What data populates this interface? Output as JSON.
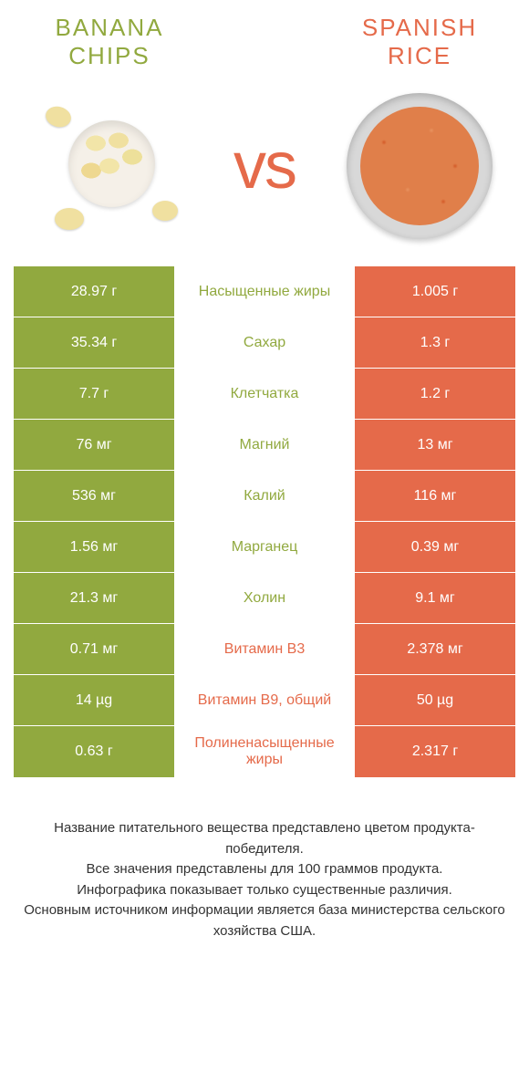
{
  "colors": {
    "left_accent": "#91a93f",
    "right_accent": "#e56a4a",
    "text": "#333333",
    "background": "#ffffff"
  },
  "product_left": {
    "title": "Banana chips"
  },
  "product_right": {
    "title": "Spanish rice"
  },
  "vs_label": "vs",
  "nutrients": [
    {
      "label": "Насыщенные жиры",
      "left_value": "28.97 г",
      "right_value": "1.005 г",
      "winner": "left"
    },
    {
      "label": "Сахар",
      "left_value": "35.34 г",
      "right_value": "1.3 г",
      "winner": "left"
    },
    {
      "label": "Клетчатка",
      "left_value": "7.7 г",
      "right_value": "1.2 г",
      "winner": "left"
    },
    {
      "label": "Магний",
      "left_value": "76 мг",
      "right_value": "13 мг",
      "winner": "left"
    },
    {
      "label": "Калий",
      "left_value": "536 мг",
      "right_value": "116 мг",
      "winner": "left"
    },
    {
      "label": "Марганец",
      "left_value": "1.56 мг",
      "right_value": "0.39 мг",
      "winner": "left"
    },
    {
      "label": "Холин",
      "left_value": "21.3 мг",
      "right_value": "9.1 мг",
      "winner": "left"
    },
    {
      "label": "Витамин B3",
      "left_value": "0.71 мг",
      "right_value": "2.378 мг",
      "winner": "right"
    },
    {
      "label": "Витамин B9, общий",
      "left_value": "14 µg",
      "right_value": "50 µg",
      "winner": "right"
    },
    {
      "label": "Полиненасыщенные жиры",
      "left_value": "0.63 г",
      "right_value": "2.317 г",
      "winner": "right"
    }
  ],
  "footer": {
    "line1": "Название питательного вещества представлено цветом продукта-победителя.",
    "line2": "Все значения представлены для 100 граммов продукта.",
    "line3": "Инфографика показывает только существенные различия.",
    "line4": "Основным источником информации является база министерства сельского хозяйства США."
  }
}
